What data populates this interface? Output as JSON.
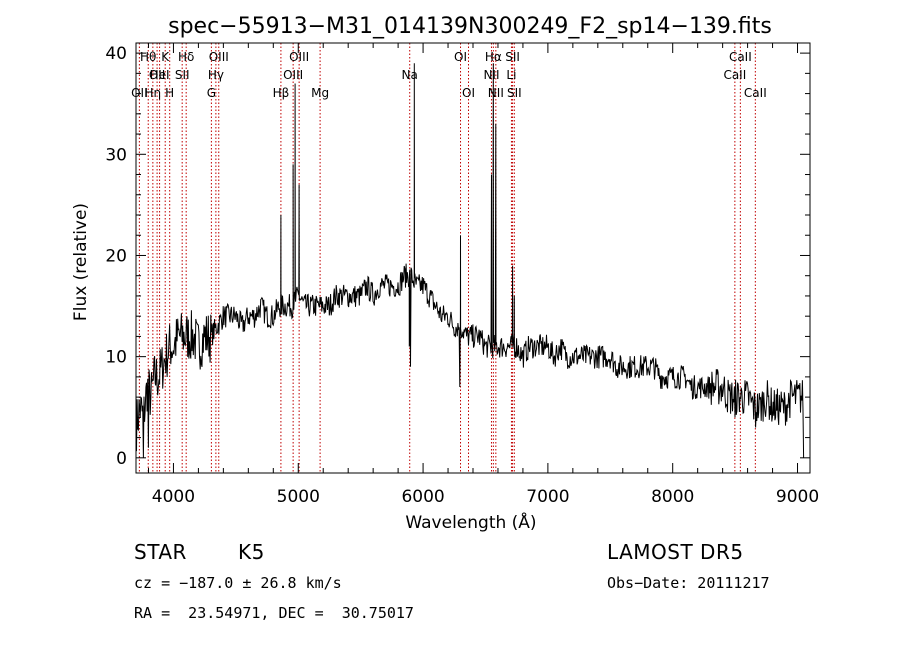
{
  "chart_data": {
    "type": "line",
    "title": "spec−55913−M31_014139N300249_F2_sp14−139.fits",
    "xlabel": "Wavelength (Å)",
    "ylabel": "Flux (relative)",
    "xlim": [
      3700,
      9100
    ],
    "ylim": [
      -1.5,
      41
    ],
    "xticks": [
      4000,
      5000,
      6000,
      7000,
      8000,
      9000
    ],
    "yticks": [
      0,
      10,
      20,
      30,
      40
    ],
    "grid": false,
    "line_color": "#000000",
    "marker_color": "#c00000",
    "series": [
      {
        "values_note": "continuum",
        "x": [
          3700,
          3730,
          3760,
          3790,
          3820,
          3850,
          3880,
          3910,
          3940,
          3970,
          4000,
          4040,
          4080,
          4120,
          4160,
          4200,
          4250,
          4300,
          4350,
          4400,
          4450,
          4500,
          4550,
          4600,
          4650,
          4700,
          4750,
          4800,
          4850,
          4900,
          4950,
          5000,
          5050,
          5100,
          5150,
          5200,
          5250,
          5300,
          5350,
          5400,
          5450,
          5500,
          5550,
          5600,
          5650,
          5700,
          5750,
          5800,
          5850,
          5900,
          5950,
          6000,
          6050,
          6100,
          6150,
          6200,
          6250,
          6300,
          6350,
          6400,
          6450,
          6500,
          6550,
          6600,
          6650,
          6700,
          6750,
          6800,
          6850,
          6900,
          6950,
          7000,
          7050,
          7100,
          7150,
          7200,
          7250,
          7300,
          7350,
          7400,
          7450,
          7500,
          7550,
          7600,
          7650,
          7700,
          7750,
          7800,
          7850,
          7900,
          7950,
          8000,
          8050,
          8100,
          8150,
          8200,
          8250,
          8300,
          8350,
          8400,
          8450,
          8500,
          8550,
          8600,
          8650,
          8700,
          8750,
          8800,
          8850,
          8900,
          8950,
          9000,
          9050,
          9100
        ],
        "y": [
          3,
          5,
          4,
          7,
          6,
          8,
          8,
          9,
          10,
          11,
          11,
          12,
          12,
          12,
          12,
          11,
          12,
          12,
          13,
          14,
          14,
          14,
          13,
          14,
          14,
          15,
          14,
          14,
          15,
          15,
          15,
          16,
          15,
          15,
          15,
          15,
          15,
          16,
          16,
          16,
          16,
          16,
          17,
          16,
          17,
          17,
          17,
          17,
          18,
          18,
          17,
          17,
          16,
          15,
          14,
          14,
          13,
          13,
          12,
          12,
          12,
          11,
          11,
          11,
          11,
          11,
          11,
          10,
          11,
          11,
          11,
          11,
          10,
          11,
          10,
          10,
          10,
          10,
          10,
          10,
          10,
          10,
          9,
          9,
          9,
          9,
          9,
          9,
          9,
          8,
          8,
          8,
          8,
          8,
          7,
          7,
          7,
          7,
          7,
          7,
          6,
          6,
          6,
          6,
          5,
          5,
          6,
          5,
          5,
          5,
          6,
          6,
          6,
          6
        ]
      }
    ],
    "emission_peaks": [
      {
        "x": 4861,
        "y": 24
      },
      {
        "x": 4959,
        "y": 29
      },
      {
        "x": 4975,
        "y": 37
      },
      {
        "x": 5007,
        "y": 27
      },
      {
        "x": 5890,
        "y": 11
      },
      {
        "x": 5930,
        "y": 39
      },
      {
        "x": 6300,
        "y": 22
      },
      {
        "x": 6548,
        "y": 28
      },
      {
        "x": 6563,
        "y": 39
      },
      {
        "x": 6583,
        "y": 33
      },
      {
        "x": 6717,
        "y": 19
      },
      {
        "x": 6731,
        "y": 16
      }
    ],
    "absorption_dips": [
      {
        "x": 3760,
        "y": 0
      },
      {
        "x": 3800,
        "y": 1
      },
      {
        "x": 5900,
        "y": 9
      },
      {
        "x": 6295,
        "y": 7
      },
      {
        "x": 8500,
        "y": 4
      },
      {
        "x": 8665,
        "y": 3
      },
      {
        "x": 9050,
        "y": 0
      }
    ],
    "line_markers": [
      {
        "x": 3727,
        "label": "OII",
        "row": 2
      },
      {
        "x": 3798,
        "label": "Hθ",
        "row": 0
      },
      {
        "x": 3835,
        "label": "Hη",
        "row": 2
      },
      {
        "x": 3869,
        "label": "OII",
        "row": 1
      },
      {
        "x": 3889,
        "label": "HeI",
        "row": 1
      },
      {
        "x": 3934,
        "label": "K",
        "row": 0
      },
      {
        "x": 3970,
        "label": "H",
        "row": 2
      },
      {
        "x": 4070,
        "label": "SII",
        "row": 1
      },
      {
        "x": 4102,
        "label": "Hδ",
        "row": 0
      },
      {
        "x": 4304,
        "label": "G",
        "row": 2
      },
      {
        "x": 4340,
        "label": "Hγ",
        "row": 1
      },
      {
        "x": 4363,
        "label": "OIII",
        "row": 0
      },
      {
        "x": 4861,
        "label": "Hβ",
        "row": 2
      },
      {
        "x": 4959,
        "label": "OIII",
        "row": 1
      },
      {
        "x": 5007,
        "label": "OIII",
        "row": 0
      },
      {
        "x": 5175,
        "label": "Mg",
        "row": 2
      },
      {
        "x": 5893,
        "label": "Na",
        "row": 1
      },
      {
        "x": 6300,
        "label": "OI",
        "row": 0
      },
      {
        "x": 6364,
        "label": "OI",
        "row": 2
      },
      {
        "x": 6548,
        "label": "NII",
        "row": 1
      },
      {
        "x": 6563,
        "label": "Hα",
        "row": 0
      },
      {
        "x": 6583,
        "label": "NII",
        "row": 2
      },
      {
        "x": 6708,
        "label": "Li",
        "row": 1
      },
      {
        "x": 6717,
        "label": "SII",
        "row": 0
      },
      {
        "x": 6731,
        "label": "SII",
        "row": 2
      },
      {
        "x": 8498,
        "label": "CaII",
        "row": 1
      },
      {
        "x": 8542,
        "label": "CaII",
        "row": 0
      },
      {
        "x": 8662,
        "label": "CaII",
        "row": 2
      }
    ]
  },
  "info": {
    "class_label": "STAR",
    "subclass": "K5",
    "survey": "LAMOST DR5",
    "cz": "cz = −187.0 ± 26.8 km/s",
    "obs_date": "Obs−Date: 20111217",
    "coords": "RA =  23.54971, DEC =  30.75017"
  }
}
